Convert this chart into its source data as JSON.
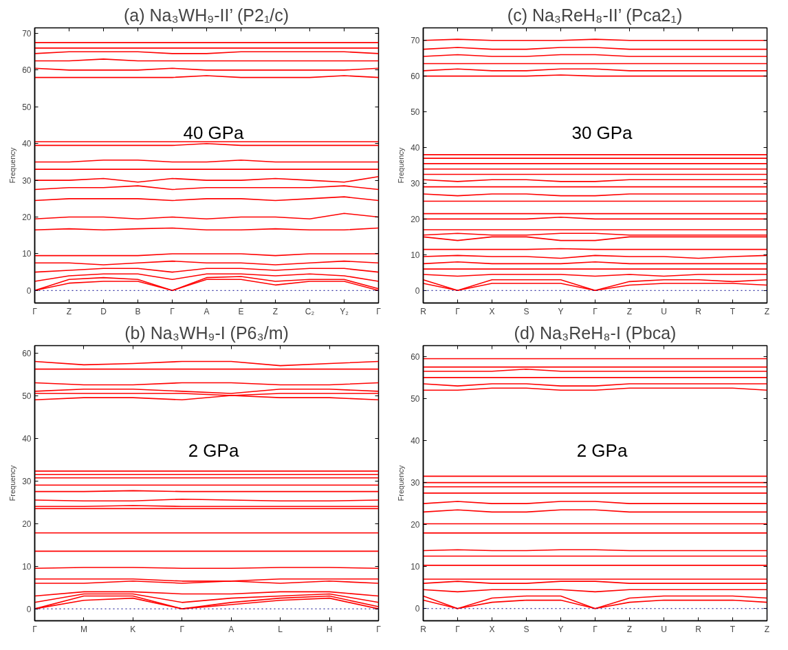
{
  "chart_data": [
    {
      "type": "line",
      "title": "(a) Na₃WH₉-II’ (P2₁/c)",
      "ylabel": "Frequency",
      "annotations": [
        "40 GPa"
      ],
      "grid": false,
      "line_style": "solid",
      "ylim": [
        -3.4,
        71.5
      ],
      "yticks": [
        0,
        10,
        20,
        30,
        40,
        50,
        60,
        70
      ],
      "categories": [
        "Γ",
        "Z",
        "D",
        "B",
        "Γ",
        "A",
        "E",
        "Z",
        "C₂",
        "Y₂",
        "Γ"
      ],
      "ref_lines": [
        {
          "axis": "y",
          "value": 0,
          "color": "#00008b",
          "line_style": "dotted"
        }
      ],
      "series": [
        {
          "color": "#ff0000",
          "values": [
            0,
            2,
            2.5,
            2.5,
            0,
            3,
            3,
            1.5,
            2.5,
            2.5,
            0
          ]
        },
        {
          "color": "#ff0000",
          "values": [
            0,
            3,
            3.5,
            3,
            0,
            3.5,
            3.8,
            2.5,
            3,
            3,
            0.5
          ]
        },
        {
          "color": "#ff0000",
          "values": [
            2.5,
            4,
            4.5,
            4.5,
            3,
            4.5,
            4.5,
            4,
            4.5,
            4,
            2.5
          ]
        },
        {
          "color": "#ff0000",
          "values": [
            5,
            5.5,
            6,
            6,
            5,
            6,
            6,
            5.5,
            6,
            6,
            5
          ]
        },
        {
          "color": "#ff0000",
          "values": [
            7.5,
            7.5,
            7,
            7.5,
            8,
            7.5,
            7.5,
            7,
            7.5,
            8,
            7.5
          ]
        },
        {
          "color": "#ff0000",
          "values": [
            9.5,
            9.5,
            9.5,
            9.5,
            10,
            10,
            10,
            9.5,
            10,
            10,
            10
          ]
        },
        {
          "color": "#ff0000",
          "values": [
            16.5,
            16.8,
            16.5,
            16.8,
            17,
            16.5,
            16.5,
            16.8,
            16.5,
            16.5,
            17
          ]
        },
        {
          "color": "#ff0000",
          "values": [
            19.5,
            20,
            20,
            19.5,
            20,
            19.5,
            20,
            20,
            19.5,
            21,
            20
          ]
        },
        {
          "color": "#ff0000",
          "values": [
            24.5,
            25,
            25,
            25,
            24.5,
            25,
            25,
            24.5,
            25,
            25.5,
            24.5
          ]
        },
        {
          "color": "#ff0000",
          "values": [
            27.5,
            28,
            28,
            28.5,
            27.5,
            28,
            28,
            28,
            28,
            28.5,
            27.5
          ]
        },
        {
          "color": "#ff0000",
          "values": [
            30,
            30,
            30.5,
            29.5,
            30.5,
            30,
            30,
            30.5,
            30,
            29.5,
            31
          ]
        },
        {
          "color": "#ff0000",
          "values": [
            33,
            33,
            33,
            33,
            33,
            33,
            33,
            33,
            33,
            33,
            33
          ]
        },
        {
          "color": "#ff0000",
          "values": [
            35,
            35,
            35.5,
            35.5,
            35,
            35,
            35.5,
            35,
            35,
            35,
            35
          ]
        },
        {
          "color": "#ff0000",
          "values": [
            39.5,
            39.5,
            39.5,
            39.5,
            39.5,
            40,
            39.5,
            39.5,
            39.5,
            39.5,
            39.5
          ]
        },
        {
          "color": "#ff0000",
          "values": [
            40.5,
            40.5,
            40.5,
            40.5,
            40.5,
            40.5,
            40.5,
            40.5,
            40.5,
            40.5,
            40.5
          ]
        },
        {
          "color": "#ff0000",
          "values": [
            58,
            58,
            58,
            58,
            58,
            58.5,
            58,
            58,
            58,
            58.5,
            58
          ]
        },
        {
          "color": "#ff0000",
          "values": [
            60.5,
            60,
            60,
            60,
            60.5,
            60,
            60,
            60,
            60,
            60,
            60.5
          ]
        },
        {
          "color": "#ff0000",
          "values": [
            62.5,
            62.5,
            63,
            62.5,
            62.5,
            62.5,
            62.5,
            62.5,
            62.5,
            62.5,
            62.5
          ]
        },
        {
          "color": "#ff0000",
          "values": [
            64.5,
            65,
            65,
            65,
            64.5,
            64.5,
            65,
            65,
            65,
            65,
            64.5
          ]
        },
        {
          "color": "#ff0000",
          "values": [
            66,
            66,
            66,
            66,
            66,
            66,
            66,
            66,
            66,
            66,
            66
          ]
        },
        {
          "color": "#ff0000",
          "values": [
            67.5,
            67.5,
            67.5,
            67.5,
            67.5,
            67.5,
            67.5,
            67.5,
            67.5,
            67.5,
            67.5
          ]
        }
      ]
    },
    {
      "type": "line",
      "title": "(c) Na₃ReH₈-II’ (Pca2₁)",
      "ylabel": "Frequency",
      "annotations": [
        "30 GPa"
      ],
      "grid": false,
      "line_style": "solid",
      "ylim": [
        -3.5,
        73.5
      ],
      "yticks": [
        0,
        10,
        20,
        30,
        40,
        50,
        60,
        70
      ],
      "categories": [
        "R",
        "Γ",
        "X",
        "S",
        "Y",
        "Γ",
        "Z",
        "U",
        "R",
        "T",
        "Z"
      ],
      "ref_lines": [
        {
          "axis": "y",
          "value": 0,
          "color": "#00008b",
          "line_style": "dotted"
        }
      ],
      "series": [
        {
          "color": "#ff0000",
          "values": [
            2,
            0,
            2,
            2,
            2,
            0,
            1.5,
            2,
            2,
            2,
            1.5
          ]
        },
        {
          "color": "#ff0000",
          "values": [
            3,
            0,
            3,
            3,
            3,
            0,
            2.5,
            3,
            3,
            2.5,
            3
          ]
        },
        {
          "color": "#ff0000",
          "values": [
            4.5,
            4,
            4.5,
            4.5,
            4.5,
            4,
            4.5,
            4,
            4.5,
            4.5,
            4.5
          ]
        },
        {
          "color": "#ff0000",
          "values": [
            6,
            6,
            6,
            6,
            6,
            6,
            6,
            6,
            6,
            6,
            6
          ]
        },
        {
          "color": "#ff0000",
          "values": [
            7.5,
            8,
            7.5,
            7.5,
            7.5,
            8,
            7.5,
            7.5,
            7.5,
            7.5,
            7.5
          ]
        },
        {
          "color": "#ff0000",
          "values": [
            9.5,
            9.8,
            9.5,
            9.5,
            9,
            9.8,
            9.5,
            9.5,
            9,
            9.5,
            9.8
          ]
        },
        {
          "color": "#ff0000",
          "values": [
            11.5,
            11.5,
            11.5,
            11.5,
            11.7,
            11.5,
            11.5,
            11.5,
            11.5,
            11.5,
            11.5
          ]
        },
        {
          "color": "#ff0000",
          "values": [
            15,
            14,
            15,
            15,
            14,
            14,
            15,
            15,
            15,
            15,
            15
          ]
        },
        {
          "color": "#ff0000",
          "values": [
            15.5,
            16,
            15.5,
            15.5,
            16,
            16,
            15.5,
            15.5,
            15.5,
            15.5,
            15.5
          ]
        },
        {
          "color": "#ff0000",
          "values": [
            17,
            17,
            17,
            17,
            17,
            17,
            17,
            17,
            17,
            17,
            17
          ]
        },
        {
          "color": "#ff0000",
          "values": [
            20,
            20,
            20,
            20,
            20.5,
            20,
            20,
            20,
            20,
            20,
            20
          ]
        },
        {
          "color": "#ff0000",
          "values": [
            21.5,
            21.5,
            21.5,
            21.5,
            21.5,
            21.5,
            21.5,
            21.5,
            21.5,
            21.5,
            21.5
          ]
        },
        {
          "color": "#ff0000",
          "values": [
            25,
            25,
            25,
            25,
            25,
            25,
            25,
            25,
            25,
            25,
            25
          ]
        },
        {
          "color": "#ff0000",
          "values": [
            27,
            26.5,
            27,
            27,
            26.5,
            26.5,
            27,
            27,
            27,
            27,
            27
          ]
        },
        {
          "color": "#ff0000",
          "values": [
            29,
            29,
            29,
            29,
            29,
            29,
            29,
            29,
            29,
            29,
            29
          ]
        },
        {
          "color": "#ff0000",
          "values": [
            31,
            30.5,
            31,
            31,
            30.5,
            30.5,
            31,
            31,
            31,
            31,
            31
          ]
        },
        {
          "color": "#ff0000",
          "values": [
            32.5,
            32.5,
            32.5,
            32.5,
            32.5,
            32.5,
            32.5,
            32.5,
            32.5,
            32.5,
            32.5
          ]
        },
        {
          "color": "#ff0000",
          "values": [
            34,
            34,
            34,
            34,
            34,
            34,
            34,
            34,
            34,
            34,
            34
          ]
        },
        {
          "color": "#ff0000",
          "values": [
            35.5,
            35.5,
            35.5,
            35.5,
            35.5,
            35.5,
            35.5,
            35.5,
            35.5,
            35.5,
            35.5
          ]
        },
        {
          "color": "#ff0000",
          "values": [
            37,
            37,
            37,
            37,
            37,
            37,
            37,
            37,
            37,
            37,
            37
          ]
        },
        {
          "color": "#ff0000",
          "values": [
            38,
            38,
            38,
            38,
            38,
            38,
            38,
            38,
            38,
            38,
            38
          ]
        },
        {
          "color": "#ff0000",
          "values": [
            60,
            60,
            60,
            60,
            60.3,
            60,
            60,
            60,
            60,
            60,
            60
          ]
        },
        {
          "color": "#ff0000",
          "values": [
            61.5,
            62,
            61.5,
            61.5,
            62,
            62,
            61.5,
            61.5,
            61.5,
            61.5,
            61.5
          ]
        },
        {
          "color": "#ff0000",
          "values": [
            63.5,
            63.5,
            63.5,
            63.5,
            63.5,
            63.5,
            63.5,
            63.5,
            63.5,
            63.5,
            63.5
          ]
        },
        {
          "color": "#ff0000",
          "values": [
            65.5,
            66,
            65.5,
            65.5,
            66,
            66,
            65.5,
            65.5,
            65.5,
            65.5,
            65.5
          ]
        },
        {
          "color": "#ff0000",
          "values": [
            67.5,
            68,
            67.5,
            67.5,
            68,
            68,
            67.5,
            67.5,
            67.5,
            67.5,
            67.5
          ]
        },
        {
          "color": "#ff0000",
          "values": [
            70,
            70.3,
            70,
            70,
            70,
            70.3,
            70,
            70,
            70,
            70,
            70
          ]
        }
      ]
    },
    {
      "type": "line",
      "title": "(b) Na₃WH₉-I (P6₃/m)",
      "ylabel": "Frequency",
      "annotations": [
        "2 GPa"
      ],
      "grid": false,
      "line_style": "solid",
      "ylim": [
        -2.8,
        61.7
      ],
      "yticks": [
        0,
        10,
        20,
        30,
        40,
        50,
        60
      ],
      "categories": [
        "Γ",
        "M",
        "K",
        "Γ",
        "A",
        "L",
        "H",
        "Γ"
      ],
      "ref_lines": [
        {
          "axis": "y",
          "value": 0,
          "color": "#00008b",
          "line_style": "dotted"
        }
      ],
      "series": [
        {
          "color": "#ff0000",
          "values": [
            0,
            2,
            2.5,
            0,
            1,
            2,
            2.5,
            0
          ]
        },
        {
          "color": "#ff0000",
          "values": [
            0,
            3,
            3,
            0,
            1.5,
            2.5,
            3,
            0.5
          ]
        },
        {
          "color": "#ff0000",
          "values": [
            1.5,
            3.5,
            3.5,
            1.5,
            2.5,
            3,
            3.5,
            1.5
          ]
        },
        {
          "color": "#ff0000",
          "values": [
            3,
            4,
            4,
            3.5,
            3.5,
            4,
            4,
            3
          ]
        },
        {
          "color": "#ff0000",
          "values": [
            6,
            6,
            6.5,
            6,
            6.5,
            6,
            6.5,
            6
          ]
        },
        {
          "color": "#ff0000",
          "values": [
            7,
            7,
            7,
            6.5,
            6.5,
            7,
            7,
            7
          ]
        },
        {
          "color": "#ff0000",
          "values": [
            9.5,
            9.7,
            9.7,
            9.5,
            9.5,
            9.7,
            9.7,
            9.5
          ]
        },
        {
          "color": "#ff0000",
          "values": [
            13.5,
            13.5,
            13.5,
            13.5,
            13.5,
            13.5,
            13.5,
            13.5
          ]
        },
        {
          "color": "#ff0000",
          "values": [
            17.8,
            17.8,
            17.8,
            17.8,
            17.8,
            17.8,
            17.8,
            17.8
          ]
        },
        {
          "color": "#ff0000",
          "values": [
            23.5,
            23.5,
            23.5,
            23.5,
            23.5,
            23.5,
            23.5,
            23.5
          ]
        },
        {
          "color": "#ff0000",
          "values": [
            24,
            24,
            24.2,
            24,
            24,
            24,
            24,
            24
          ]
        },
        {
          "color": "#ff0000",
          "values": [
            25.5,
            25.3,
            25.3,
            25.7,
            25.5,
            25.3,
            25.3,
            25.5
          ]
        },
        {
          "color": "#ff0000",
          "values": [
            27.5,
            27.5,
            27.7,
            27.5,
            27.5,
            27.5,
            27.5,
            27.5
          ]
        },
        {
          "color": "#ff0000",
          "values": [
            29,
            29,
            29,
            29,
            29,
            29,
            29,
            29
          ]
        },
        {
          "color": "#ff0000",
          "values": [
            30.7,
            30.7,
            30.7,
            30.7,
            30.7,
            30.7,
            30.7,
            30.7
          ]
        },
        {
          "color": "#ff0000",
          "values": [
            31.5,
            31.5,
            31.5,
            31.5,
            31.5,
            31.5,
            31.5,
            31.5
          ]
        },
        {
          "color": "#ff0000",
          "values": [
            32.3,
            32.3,
            32.3,
            32.3,
            32.3,
            32.3,
            32.3,
            32.3
          ]
        },
        {
          "color": "#ff0000",
          "values": [
            49,
            49.5,
            49.5,
            49,
            50,
            49.5,
            49.5,
            49
          ]
        },
        {
          "color": "#ff0000",
          "values": [
            50.5,
            50.5,
            50.5,
            50.5,
            50,
            50.5,
            50.5,
            50.5
          ]
        },
        {
          "color": "#ff0000",
          "values": [
            51,
            51.5,
            51.5,
            51,
            50.5,
            51.5,
            51.5,
            51
          ]
        },
        {
          "color": "#ff0000",
          "values": [
            53,
            52.5,
            52.5,
            53,
            53,
            52.5,
            52.5,
            53
          ]
        },
        {
          "color": "#ff0000",
          "values": [
            56.2,
            56.2,
            56.2,
            56.2,
            56.2,
            56.2,
            56.2,
            56.2
          ]
        },
        {
          "color": "#ff0000",
          "values": [
            58,
            57.2,
            57.5,
            58,
            58,
            57,
            57.5,
            58
          ]
        }
      ]
    },
    {
      "type": "line",
      "title": "(d) Na₃ReH₈-I (Pbca)",
      "ylabel": "Frequency",
      "annotations": [
        "2 GPa"
      ],
      "grid": false,
      "line_style": "solid",
      "ylim": [
        -2.9,
        62.6
      ],
      "yticks": [
        0,
        10,
        20,
        30,
        40,
        50,
        60
      ],
      "categories": [
        "R",
        "Γ",
        "X",
        "S",
        "Y",
        "Γ",
        "Z",
        "U",
        "R",
        "T",
        "Z"
      ],
      "ref_lines": [
        {
          "axis": "y",
          "value": 0,
          "color": "#00008b",
          "line_style": "dotted"
        }
      ],
      "series": [
        {
          "color": "#ff0000",
          "values": [
            2,
            0,
            1.5,
            2,
            2,
            0,
            1.5,
            2,
            2,
            2,
            1.5
          ]
        },
        {
          "color": "#ff0000",
          "values": [
            3,
            0,
            2.5,
            3,
            3,
            0,
            2.5,
            3,
            3,
            3,
            2.5
          ]
        },
        {
          "color": "#ff0000",
          "values": [
            4.5,
            4,
            4.5,
            4.5,
            4.5,
            4,
            4.5,
            4.5,
            4.5,
            4.5,
            4.5
          ]
        },
        {
          "color": "#ff0000",
          "values": [
            6,
            6.5,
            6,
            6,
            6.5,
            6.5,
            6,
            6,
            6,
            6,
            6
          ]
        },
        {
          "color": "#ff0000",
          "values": [
            7,
            7,
            7,
            7,
            7,
            7,
            7,
            7,
            7,
            7,
            7
          ]
        },
        {
          "color": "#ff0000",
          "values": [
            10.3,
            10.3,
            10.3,
            10.3,
            10.3,
            10.3,
            10.3,
            10.3,
            10.3,
            10.3,
            10.3
          ]
        },
        {
          "color": "#ff0000",
          "values": [
            12.5,
            12.5,
            12.5,
            12.5,
            12.5,
            12.5,
            12.5,
            12.5,
            12.5,
            12.5,
            12.5
          ]
        },
        {
          "color": "#ff0000",
          "values": [
            13.8,
            14,
            13.8,
            13.8,
            14,
            14,
            13.8,
            13.8,
            13.8,
            13.8,
            13.8
          ]
        },
        {
          "color": "#ff0000",
          "values": [
            18,
            18,
            18,
            18,
            18,
            18,
            18,
            18,
            18,
            18,
            18
          ]
        },
        {
          "color": "#ff0000",
          "values": [
            20.2,
            20.2,
            20.2,
            20.2,
            20.2,
            20.2,
            20.2,
            20.2,
            20.2,
            20.2,
            20.2
          ]
        },
        {
          "color": "#ff0000",
          "values": [
            23,
            23.5,
            23,
            23,
            23.5,
            23.5,
            23,
            23,
            23,
            23,
            23
          ]
        },
        {
          "color": "#ff0000",
          "values": [
            25,
            25.5,
            25,
            25,
            25.5,
            25.5,
            25,
            25,
            25,
            25,
            25
          ]
        },
        {
          "color": "#ff0000",
          "values": [
            27.5,
            27.5,
            27.5,
            27.5,
            27.5,
            27.5,
            27.5,
            27.5,
            27.5,
            27.5,
            27.5
          ]
        },
        {
          "color": "#ff0000",
          "values": [
            29,
            29,
            29,
            29,
            29,
            29,
            29,
            29,
            29,
            29,
            29
          ]
        },
        {
          "color": "#ff0000",
          "values": [
            30,
            30,
            30,
            30,
            30,
            30,
            30,
            30,
            30,
            30,
            30
          ]
        },
        {
          "color": "#ff0000",
          "values": [
            31.5,
            31.5,
            31.5,
            31.5,
            31.5,
            31.5,
            31.5,
            31.5,
            31.5,
            31.5,
            31.5
          ]
        },
        {
          "color": "#ff0000",
          "values": [
            52,
            52,
            52.5,
            52.5,
            52,
            52,
            52.5,
            52.5,
            52.5,
            52.5,
            52
          ]
        },
        {
          "color": "#ff0000",
          "values": [
            53.5,
            53,
            53.5,
            53.5,
            53,
            53,
            53.5,
            53.5,
            53.5,
            53.5,
            53.5
          ]
        },
        {
          "color": "#ff0000",
          "values": [
            55,
            55,
            55,
            55,
            55,
            55,
            55,
            55,
            55,
            55,
            55
          ]
        },
        {
          "color": "#ff0000",
          "values": [
            56.5,
            56.5,
            56.5,
            57,
            56.5,
            56.5,
            56.5,
            56.5,
            56.5,
            56.5,
            56.5
          ]
        },
        {
          "color": "#ff0000",
          "values": [
            57.5,
            57.5,
            57.5,
            57.5,
            57.5,
            57.5,
            57.5,
            57.5,
            57.5,
            57.5,
            57.5
          ]
        },
        {
          "color": "#ff0000",
          "values": [
            59.5,
            59.5,
            59.5,
            59.5,
            59.5,
            59.5,
            59.5,
            59.5,
            59.5,
            59.5,
            59.5
          ]
        }
      ]
    }
  ]
}
